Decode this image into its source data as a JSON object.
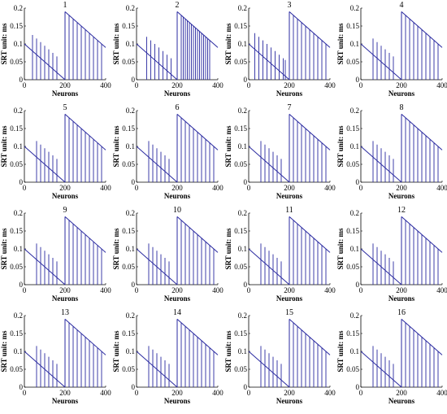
{
  "chart_data": {
    "type": "line",
    "grid": false,
    "legend": "none",
    "series_color": "#2a2aa0",
    "xlabel": "Neurons",
    "ylabel": "SRT  unit: ms",
    "xlim": [
      0,
      400
    ],
    "ylim": [
      0,
      0.2
    ],
    "xticks": [
      0,
      200,
      400
    ],
    "yticks": [
      0,
      0.05,
      0.1,
      0.15,
      0.2
    ],
    "xtick_labels": [
      "0",
      "200",
      "400"
    ],
    "ytick_labels": [
      "0",
      "0.05",
      "0.1",
      "0.15",
      "0.2"
    ],
    "ramp1": {
      "x": [
        0,
        200
      ],
      "y": [
        0.1,
        0.0
      ]
    },
    "ramp2": {
      "x": [
        200,
        400
      ],
      "y": [
        0.19,
        0.09
      ]
    },
    "panels": [
      {
        "title": "1",
        "spikes_left": [
          40,
          60,
          80,
          100,
          120,
          140,
          160
        ],
        "spikes_right": [
          220,
          240,
          260,
          280,
          300,
          320,
          340,
          360,
          380
        ]
      },
      {
        "title": "2",
        "spikes_left": [
          50,
          70,
          90,
          110,
          130,
          150,
          170
        ],
        "spikes_right": [
          220,
          230,
          240,
          250,
          260,
          270,
          280,
          290,
          300,
          310,
          320,
          330,
          340,
          350,
          360
        ]
      },
      {
        "title": "3",
        "spikes_left": [
          30,
          50,
          70,
          90,
          110,
          130,
          150,
          170,
          180
        ],
        "spikes_right": [
          220,
          240,
          260,
          280,
          300,
          320,
          340,
          360,
          380
        ]
      },
      {
        "title": "4",
        "spikes_left": [
          60,
          80,
          100,
          120,
          140,
          160
        ],
        "spikes_right": [
          220,
          240,
          260,
          280,
          300,
          320,
          340,
          360,
          380
        ]
      },
      {
        "title": "5",
        "spikes_left": [
          60,
          80,
          100,
          120,
          140,
          160
        ],
        "spikes_right": [
          220,
          240,
          260,
          280,
          300,
          320,
          340,
          360,
          380
        ]
      },
      {
        "title": "6",
        "spikes_left": [
          60,
          80,
          100,
          120,
          140,
          160
        ],
        "spikes_right": [
          220,
          240,
          260,
          280,
          300,
          320,
          340,
          360,
          380
        ]
      },
      {
        "title": "7",
        "spikes_left": [
          60,
          80,
          100,
          120,
          140,
          160
        ],
        "spikes_right": [
          220,
          240,
          260,
          280,
          300,
          320,
          340,
          360,
          380
        ]
      },
      {
        "title": "8",
        "spikes_left": [
          60,
          80,
          100,
          120,
          140,
          160
        ],
        "spikes_right": [
          220,
          240,
          260,
          280,
          300,
          320,
          340,
          360,
          380
        ]
      },
      {
        "title": "9",
        "spikes_left": [
          60,
          80,
          100,
          120,
          140,
          160
        ],
        "spikes_right": [
          220,
          240,
          260,
          280,
          300,
          320,
          340,
          360,
          380
        ]
      },
      {
        "title": "10",
        "spikes_left": [
          60,
          80,
          100,
          120,
          140,
          160
        ],
        "spikes_right": [
          220,
          240,
          260,
          280,
          300,
          320,
          340,
          360,
          380
        ]
      },
      {
        "title": "11",
        "spikes_left": [
          60,
          80,
          100,
          120,
          140,
          160
        ],
        "spikes_right": [
          220,
          240,
          260,
          280,
          300,
          320,
          340,
          360,
          380
        ]
      },
      {
        "title": "12",
        "spikes_left": [
          60,
          80,
          100,
          120,
          140,
          160
        ],
        "spikes_right": [
          220,
          240,
          260,
          280,
          300,
          320,
          340,
          360,
          380
        ]
      },
      {
        "title": "13",
        "spikes_left": [
          60,
          80,
          100,
          120,
          140,
          160
        ],
        "spikes_right": [
          220,
          240,
          260,
          280,
          300,
          320,
          340,
          360,
          380
        ]
      },
      {
        "title": "14",
        "spikes_left": [
          60,
          80,
          100,
          120,
          140,
          160
        ],
        "spikes_right": [
          220,
          240,
          260,
          280,
          300,
          320,
          340,
          360,
          380
        ]
      },
      {
        "title": "15",
        "spikes_left": [
          60,
          80,
          100,
          120,
          140,
          160
        ],
        "spikes_right": [
          220,
          240,
          260,
          280,
          300,
          320,
          340,
          360,
          380
        ]
      },
      {
        "title": "16",
        "spikes_left": [
          60,
          80,
          100,
          120,
          140,
          160
        ],
        "spikes_right": [
          220,
          240,
          260,
          280,
          300,
          320,
          340,
          360,
          380
        ]
      }
    ]
  }
}
